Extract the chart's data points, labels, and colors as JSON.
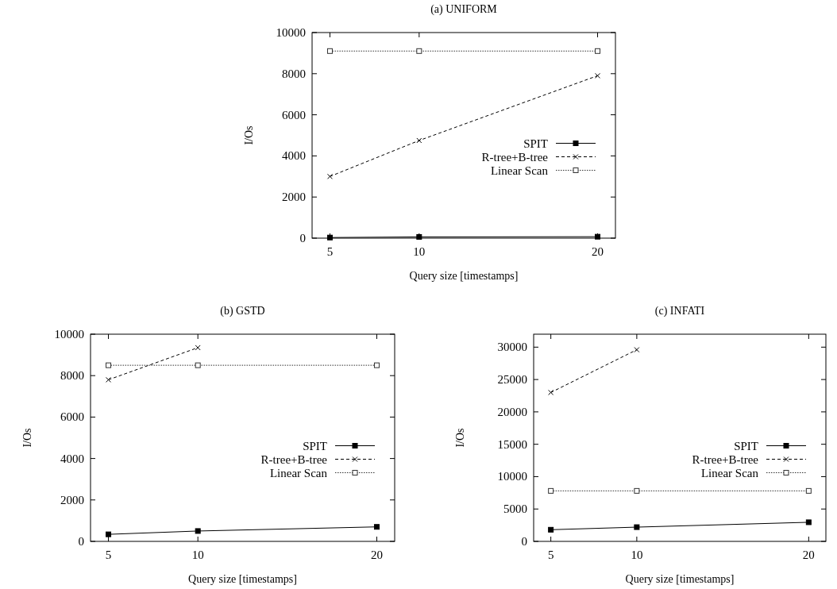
{
  "chart_data": [
    {
      "type": "line",
      "title": "(a) UNIFORM",
      "xlabel": "Query size [timestamps]",
      "ylabel": "I/Os",
      "x": [
        5,
        10,
        20
      ],
      "xlim": [
        4,
        21
      ],
      "xticks": [
        5,
        10,
        20
      ],
      "ylim": [
        0,
        10000
      ],
      "yticks": [
        0,
        2000,
        4000,
        6000,
        8000,
        10000
      ],
      "legend": "right",
      "grid": false,
      "series": [
        {
          "name": "SPIT",
          "color": "#000000",
          "values": [
            30,
            60,
            70
          ],
          "marker": "square",
          "line_style": "solid"
        },
        {
          "name": "R-tree+B-tree",
          "color": "#000000",
          "values": [
            3000,
            4750,
            7900
          ],
          "marker": "cross",
          "line_style": "dashed"
        },
        {
          "name": "Linear Scan",
          "color": "#333333",
          "values": [
            9100,
            9100,
            9100
          ],
          "marker": "square",
          "line_style": "dotted"
        }
      ]
    },
    {
      "type": "line",
      "title": "(b) GSTD",
      "xlabel": "Query size [timestamps]",
      "ylabel": "I/Os",
      "x": [
        5,
        10,
        20
      ],
      "xlim": [
        4,
        21
      ],
      "xticks": [
        5,
        10,
        20
      ],
      "ylim": [
        0,
        10000
      ],
      "yticks": [
        0,
        2000,
        4000,
        6000,
        8000,
        10000
      ],
      "legend": "right",
      "grid": false,
      "series": [
        {
          "name": "SPIT",
          "color": "#000000",
          "values": [
            340,
            500,
            700
          ],
          "marker": "square",
          "line_style": "solid"
        },
        {
          "name": "R-tree+B-tree",
          "color": "#000000",
          "values": [
            7800,
            9350,
            null
          ],
          "marker": "cross",
          "line_style": "dashed"
        },
        {
          "name": "Linear Scan",
          "color": "#333333",
          "values": [
            8500,
            8500,
            8500
          ],
          "marker": "square",
          "line_style": "dotted"
        }
      ]
    },
    {
      "type": "line",
      "title": "(c) INFATI",
      "xlabel": "Query size [timestamps]",
      "ylabel": "I/Os",
      "x": [
        5,
        10,
        20
      ],
      "xlim": [
        4,
        21
      ],
      "xticks": [
        5,
        10,
        20
      ],
      "ylim": [
        0,
        32000
      ],
      "yticks": [
        0,
        5000,
        10000,
        15000,
        20000,
        25000,
        30000
      ],
      "legend": "right",
      "grid": false,
      "series": [
        {
          "name": "SPIT",
          "color": "#000000",
          "values": [
            1800,
            2200,
            2950
          ],
          "marker": "square",
          "line_style": "solid"
        },
        {
          "name": "R-tree+B-tree",
          "color": "#000000",
          "values": [
            23000,
            29600,
            null
          ],
          "marker": "cross",
          "line_style": "dashed"
        },
        {
          "name": "Linear Scan",
          "color": "#333333",
          "values": [
            7800,
            7800,
            7800
          ],
          "marker": "square",
          "line_style": "dotted"
        }
      ]
    }
  ]
}
